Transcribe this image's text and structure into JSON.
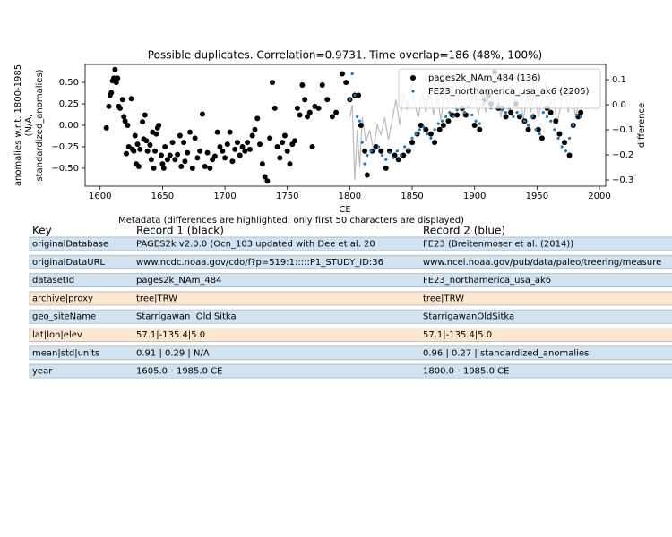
{
  "chart_data": {
    "type": "scatter",
    "title": "Possible duplicates. Correlation=0.9731. Time overlap=186 (48%, 100%)",
    "xlabel": "CE",
    "ylabel": [
      "anomalies w.r.t. 1800-1985",
      "(N/A,",
      "standardized_anomalies)"
    ],
    "y2label": "difference",
    "xlim": [
      1588,
      2005
    ],
    "xticks": [
      1600,
      1650,
      1700,
      1750,
      1800,
      1850,
      1900,
      1950,
      2000
    ],
    "ylim": [
      -0.71,
      0.71
    ],
    "yticks": [
      {
        "value": 0.5,
        "label": "0.50"
      },
      {
        "value": 0.25,
        "label": "0.25"
      },
      {
        "value": 0,
        "label": "0.00"
      },
      {
        "value": -0.25,
        "label": "−0.25"
      },
      {
        "value": -0.5,
        "label": "−0.50"
      }
    ],
    "y2lim": [
      -0.325,
      0.161
    ],
    "y2ticks": [
      {
        "value": 0.1,
        "label": "0.1"
      },
      {
        "value": 0,
        "label": "0.0"
      },
      {
        "value": -0.1,
        "label": "−0.1"
      },
      {
        "value": -0.2,
        "label": "−0.2"
      },
      {
        "value": -0.3,
        "label": "−0.3"
      }
    ],
    "legend": "upper right",
    "series": [
      {
        "type": "line",
        "axis": "y2",
        "color": "#bbbbbb",
        "x": [
          1800,
          1802,
          1804,
          1806,
          1808,
          1810,
          1813,
          1816,
          1819,
          1822,
          1825,
          1828,
          1831,
          1834,
          1837,
          1840,
          1843,
          1846,
          1849,
          1852,
          1855,
          1858,
          1861,
          1864,
          1867,
          1870,
          1873,
          1876,
          1879,
          1882,
          1885,
          1888,
          1891,
          1894,
          1897,
          1900,
          1903,
          1906,
          1909,
          1912,
          1915,
          1918,
          1921,
          1924,
          1927,
          1930,
          1933,
          1936,
          1939,
          1942,
          1945,
          1948,
          1951,
          1954,
          1957,
          1960,
          1963,
          1966,
          1969,
          1972,
          1975,
          1978,
          1981,
          1984
        ],
        "values": [
          -0.05,
          0.0,
          -0.3,
          -0.1,
          -0.25,
          -0.05,
          -0.15,
          -0.1,
          -0.18,
          -0.08,
          -0.12,
          -0.05,
          -0.14,
          -0.06,
          0.02,
          -0.08,
          0.05,
          -0.02,
          0.08,
          0.0,
          -0.05,
          0.05,
          -0.03,
          0.07,
          -0.04,
          0.03,
          -0.06,
          0.06,
          0.0,
          0.08,
          -0.02,
          0.05,
          -0.05,
          0.04,
          0.0,
          0.06,
          -0.04,
          0.05,
          -0.03,
          0.07,
          0.0,
          0.06,
          -0.05,
          0.03,
          -0.02,
          0.08,
          0.0,
          0.05,
          -0.06,
          0.04,
          -0.03,
          0.07,
          -0.05,
          0.02,
          0.09,
          -0.02,
          0.05,
          -0.08,
          0.0,
          0.1,
          -0.03,
          0.06,
          -0.05,
          0.03
        ]
      },
      {
        "type": "scatter",
        "name": "pages2k_NAm_484 (136)",
        "color": "#000000",
        "x": [
          1605,
          1607,
          1608,
          1609,
          1610,
          1611,
          1612,
          1613,
          1614,
          1615,
          1616,
          1618,
          1619,
          1620,
          1621,
          1622,
          1623,
          1625,
          1626,
          1627,
          1628,
          1629,
          1630,
          1631,
          1632,
          1634,
          1635,
          1636,
          1637,
          1638,
          1640,
          1641,
          1642,
          1643,
          1644,
          1645,
          1646,
          1647,
          1649,
          1650,
          1651,
          1652,
          1654,
          1656,
          1658,
          1660,
          1662,
          1664,
          1665,
          1667,
          1668,
          1670,
          1672,
          1674,
          1676,
          1678,
          1680,
          1682,
          1684,
          1686,
          1688,
          1690,
          1692,
          1694,
          1696,
          1698,
          1700,
          1702,
          1704,
          1706,
          1708,
          1710,
          1712,
          1714,
          1716,
          1718,
          1720,
          1722,
          1724,
          1726,
          1728,
          1730,
          1732,
          1734,
          1736,
          1738,
          1740,
          1742,
          1744,
          1746,
          1748,
          1750,
          1752,
          1754,
          1756,
          1758,
          1760,
          1762,
          1764,
          1766,
          1768,
          1770,
          1772,
          1775,
          1778,
          1782,
          1786,
          1789,
          1794,
          1797,
          1800,
          1804,
          1807,
          1809,
          1812,
          1814,
          1818,
          1821,
          1825,
          1829,
          1832,
          1836,
          1839,
          1843,
          1847,
          1850,
          1854,
          1857,
          1861,
          1865,
          1868,
          1872,
          1875,
          1879,
          1882,
          1886,
          1890,
          1893,
          1900,
          1904,
          1908,
          1911,
          1913,
          1916,
          1919,
          1922,
          1925,
          1929,
          1933,
          1936,
          1940,
          1943,
          1947,
          1951,
          1954,
          1958,
          1961,
          1965,
          1968,
          1972,
          1976,
          1979,
          1983,
          1985
        ],
        "values": [
          -0.03,
          0.22,
          0.35,
          0.38,
          0.52,
          0.55,
          0.65,
          0.5,
          0.55,
          0.22,
          0.2,
          0.3,
          0.1,
          0.05,
          -0.33,
          0.0,
          -0.25,
          0.31,
          -0.28,
          -0.3,
          -0.12,
          -0.45,
          -0.22,
          -0.48,
          -0.28,
          0.04,
          -0.16,
          0.12,
          -0.18,
          -0.3,
          -0.23,
          -0.4,
          -0.08,
          -0.5,
          -0.3,
          -0.1,
          -0.03,
          0.0,
          -0.35,
          -0.45,
          -0.5,
          -0.25,
          -0.4,
          -0.35,
          -0.2,
          -0.4,
          -0.34,
          -0.12,
          -0.48,
          -0.2,
          -0.42,
          -0.32,
          -0.08,
          -0.5,
          -0.15,
          -0.38,
          -0.3,
          0.13,
          -0.48,
          -0.32,
          -0.5,
          -0.4,
          -0.36,
          -0.08,
          -0.25,
          -0.3,
          -0.38,
          -0.22,
          -0.08,
          -0.42,
          -0.28,
          -0.2,
          -0.35,
          -0.25,
          -0.3,
          -0.2,
          -0.28,
          -0.12,
          -0.05,
          0.08,
          -0.22,
          -0.45,
          -0.6,
          -0.65,
          -0.15,
          0.5,
          0.2,
          -0.25,
          -0.38,
          -0.2,
          -0.12,
          -0.3,
          -0.45,
          -0.22,
          -0.18,
          0.2,
          0.12,
          0.47,
          0.3,
          0.1,
          0.15,
          -0.25,
          0.22,
          0.2,
          0.47,
          0.3,
          0.1,
          0.15,
          0.6,
          0.5,
          0.3,
          0.35,
          0.35,
          0.0,
          -0.3,
          -0.58,
          -0.3,
          -0.25,
          -0.3,
          -0.5,
          -0.3,
          -0.35,
          -0.4,
          -0.35,
          -0.3,
          -0.2,
          -0.1,
          0.0,
          -0.05,
          -0.1,
          -0.2,
          -0.05,
          0.0,
          0.05,
          0.12,
          0.12,
          0.2,
          0.12,
          0.0,
          -0.05,
          0.3,
          0.35,
          0.25,
          0.62,
          0.2,
          0.2,
          0.1,
          0.15,
          0.25,
          0.1,
          0.05,
          -0.05,
          0.1,
          -0.05,
          -0.15,
          0.2,
          0.15,
          0.05,
          -0.1,
          -0.2,
          -0.35,
          0.0,
          0.1,
          0.15
        ]
      },
      {
        "type": "scatter",
        "name": "FE23_northamerica_usa_ak6 (2205)",
        "color": "#1f77b4",
        "x": [
          1800,
          1802,
          1804,
          1806,
          1808,
          1810,
          1812,
          1814,
          1817,
          1820,
          1823,
          1826,
          1829,
          1832,
          1835,
          1838,
          1841,
          1844,
          1847,
          1850,
          1853,
          1856,
          1859,
          1862,
          1865,
          1868,
          1871,
          1874,
          1877,
          1880,
          1883,
          1886,
          1889,
          1892,
          1895,
          1898,
          1901,
          1904,
          1907,
          1910,
          1913,
          1916,
          1919,
          1922,
          1925,
          1928,
          1931,
          1934,
          1937,
          1940,
          1943,
          1946,
          1949,
          1952,
          1955,
          1958,
          1961,
          1964,
          1967,
          1970,
          1973,
          1976,
          1979,
          1982,
          1985
        ],
        "values": [
          0.3,
          0.6,
          0.35,
          0.1,
          0.05,
          -0.2,
          -0.45,
          -0.35,
          -0.3,
          -0.28,
          -0.25,
          -0.35,
          -0.4,
          -0.32,
          -0.38,
          -0.3,
          -0.35,
          -0.25,
          -0.28,
          -0.15,
          -0.1,
          -0.05,
          -0.02,
          -0.1,
          -0.15,
          -0.05,
          0.02,
          0.05,
          0.1,
          0.15,
          0.1,
          0.18,
          0.2,
          0.15,
          0.22,
          0.12,
          0.05,
          0.02,
          0.25,
          0.3,
          0.2,
          0.5,
          0.25,
          0.18,
          0.15,
          0.2,
          0.1,
          0.15,
          0.12,
          0.05,
          0.0,
          0.1,
          -0.05,
          -0.1,
          0.15,
          0.1,
          0.05,
          -0.05,
          -0.15,
          -0.25,
          -0.3,
          -0.15,
          0.0,
          0.12,
          0.1
        ]
      }
    ]
  },
  "table": {
    "caption": "Metadata (differences are highlighted; only first 50 characters are displayed)",
    "header": [
      "Key",
      "Record 1 (black)",
      "Record 2 (blue)"
    ],
    "rows": [
      {
        "highlighted": false,
        "cells": [
          "originalDatabase",
          "PAGES2k v2.0.0 (Ocn_103 updated with Dee et al. 20",
          "FE23 (Breitenmoser et al. (2014))"
        ]
      },
      {
        "highlighted": false,
        "cells": [
          "originalDataURL",
          "www.ncdc.noaa.gov/cdo/f?p=519:1:::::P1_STUDY_ID:36",
          "www.ncei.noaa.gov/pub/data/paleo/treering/measure"
        ]
      },
      {
        "highlighted": false,
        "cells": [
          "datasetId",
          "pages2k_NAm_484",
          "FE23_northamerica_usa_ak6"
        ]
      },
      {
        "highlighted": true,
        "cells": [
          "archive|proxy",
          "tree|TRW",
          "tree|TRW"
        ]
      },
      {
        "highlighted": false,
        "cells": [
          "geo_siteName",
          "Starrigawan  Old Sitka",
          "StarrigawanOldSitka"
        ]
      },
      {
        "highlighted": true,
        "cells": [
          "lat|lon|elev",
          "57.1|-135.4|5.0",
          "57.1|-135.4|5.0"
        ]
      },
      {
        "highlighted": false,
        "cells": [
          "mean|std|units",
          "0.91 | 0.29 | N/A",
          "0.96 | 0.27 | standardized_anomalies"
        ]
      },
      {
        "highlighted": false,
        "cells": [
          "year",
          "1605.0 - 1985.0 CE",
          "1800.0 - 1985.0 CE"
        ]
      }
    ]
  }
}
